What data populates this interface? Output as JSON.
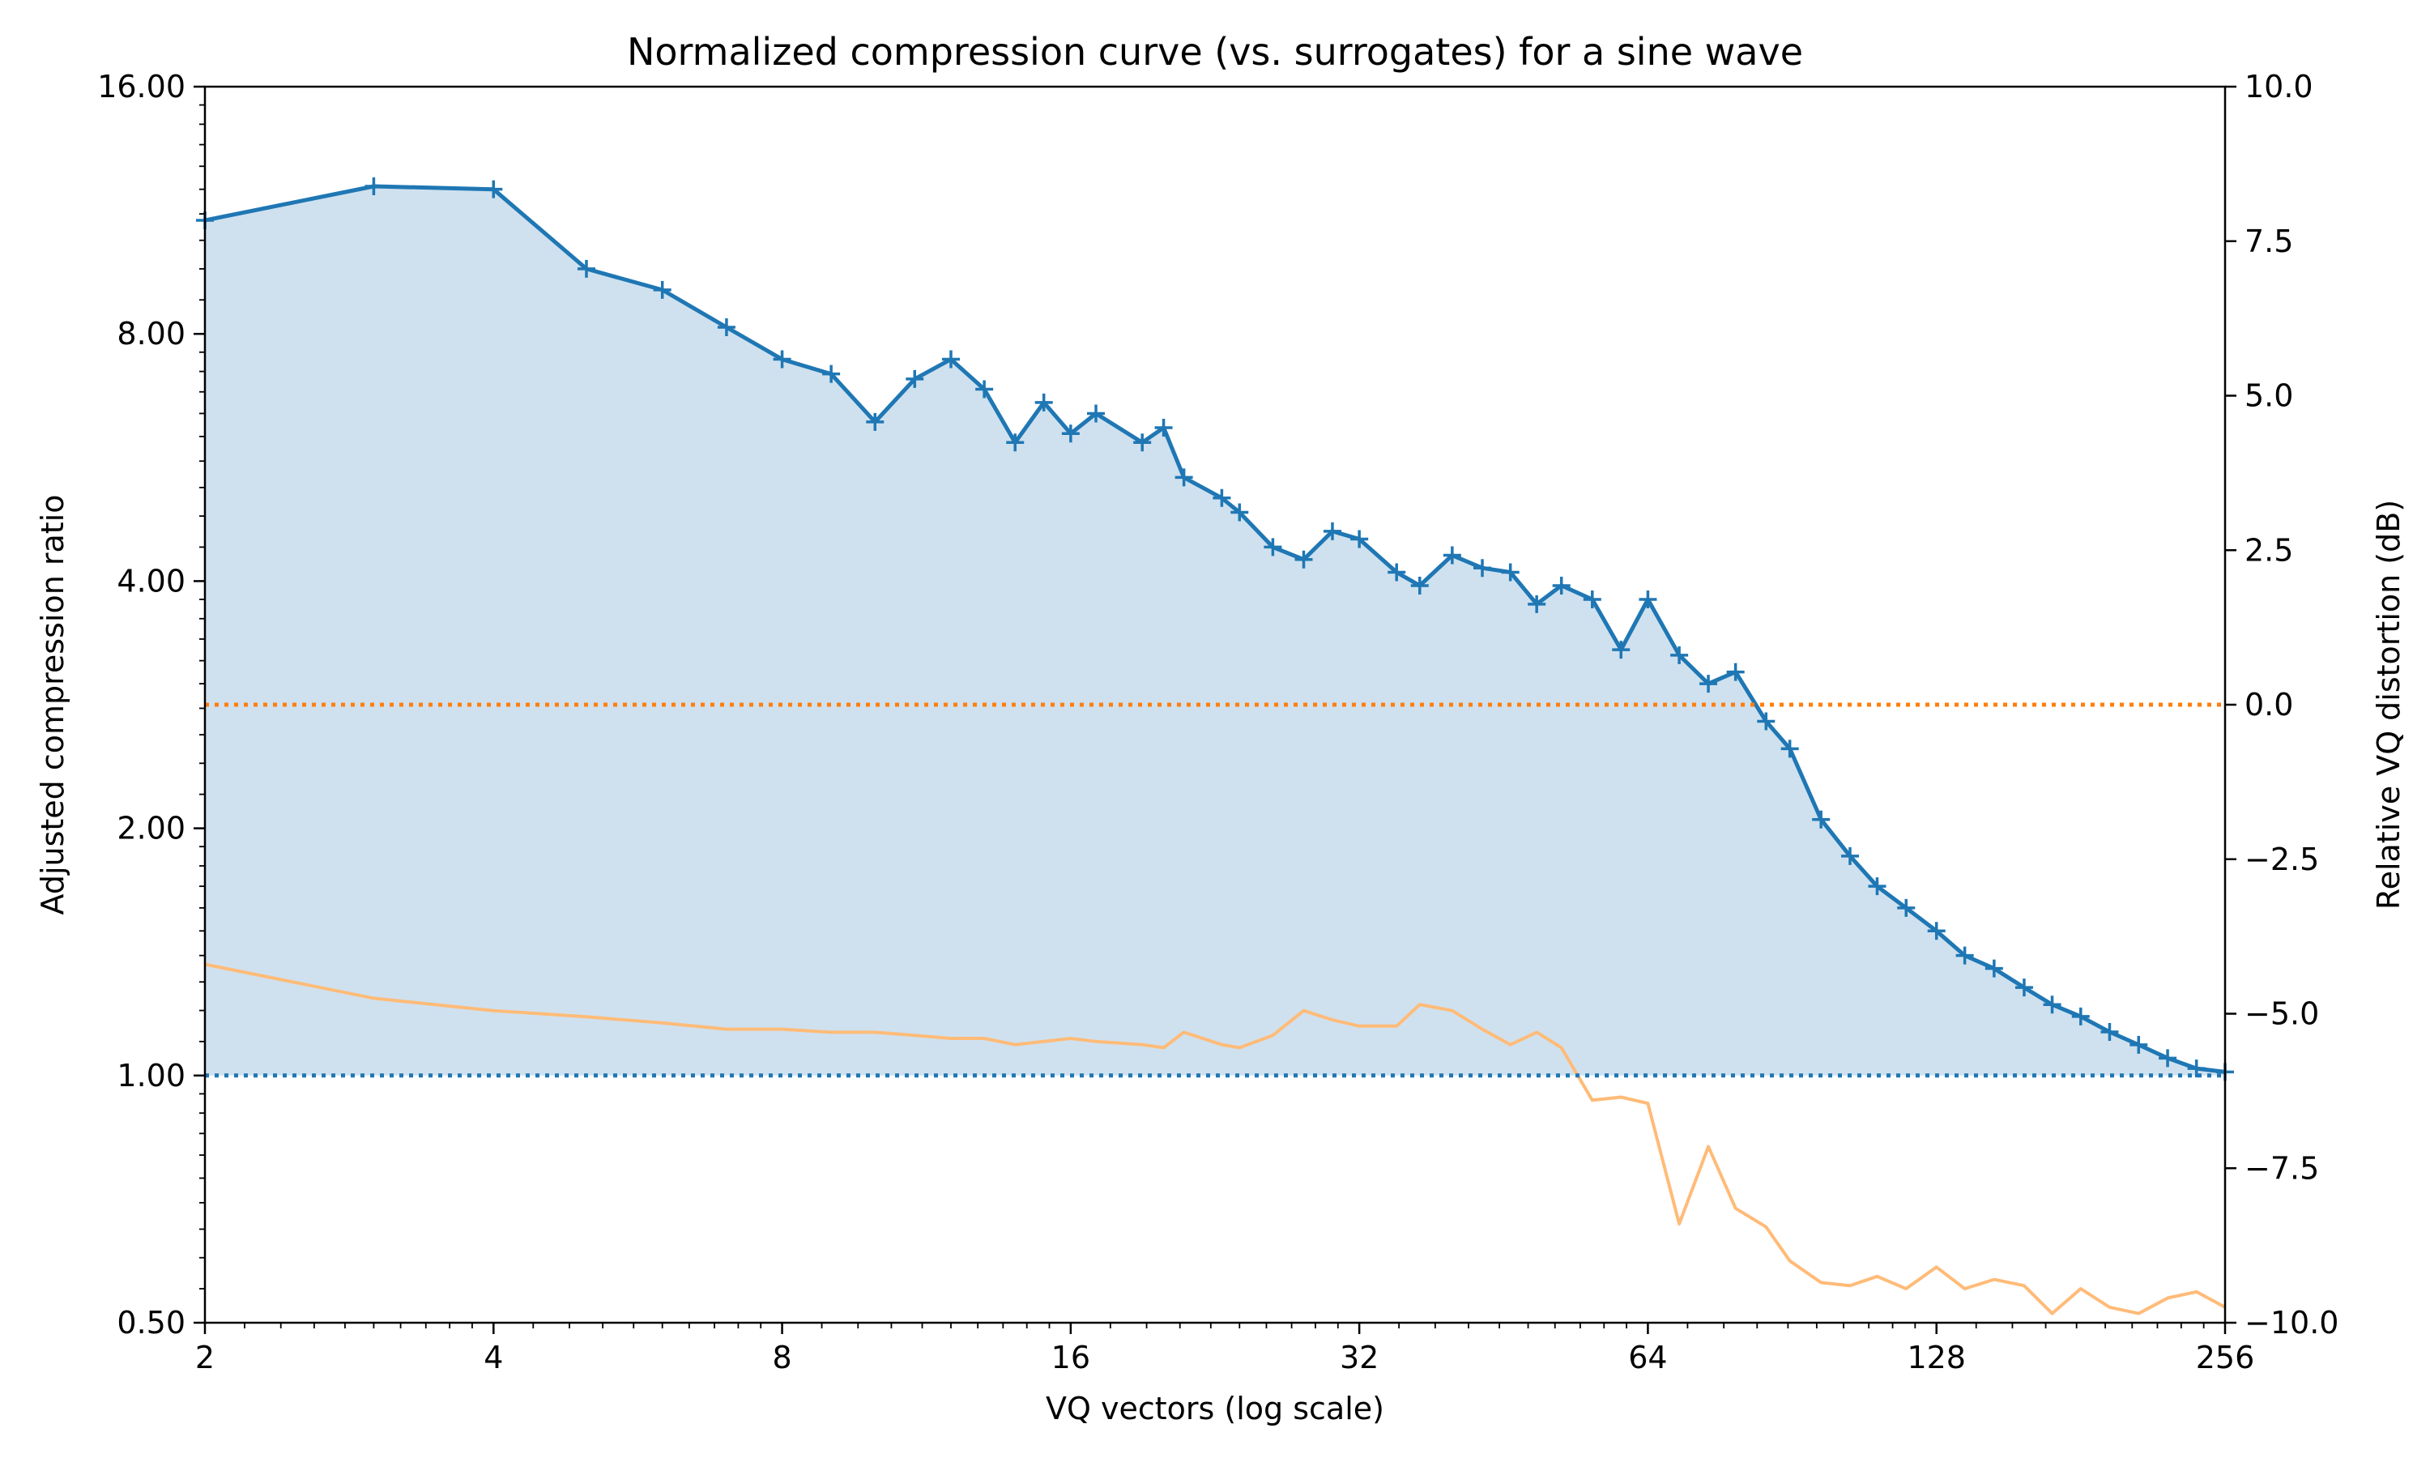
{
  "chart_data": {
    "type": "line",
    "title": "Normalized compression curve (vs. surrogates) for a sine wave",
    "xlabel": "VQ vectors (log scale)",
    "ylabel": "Adjusted compression ratio",
    "y2label": "Relative VQ distortion (dB)",
    "x_scale": "log2",
    "y_scale": "log2",
    "xlim": [
      2,
      256
    ],
    "ylim": [
      0.5,
      16
    ],
    "y2lim": [
      -10,
      10
    ],
    "x_ticks": [
      2,
      4,
      8,
      16,
      32,
      64,
      128,
      256
    ],
    "x_tick_labels": [
      "2",
      "4",
      "8",
      "16",
      "32",
      "64",
      "128",
      "256"
    ],
    "y_ticks": [
      0.5,
      1,
      2,
      4,
      8,
      16
    ],
    "y_tick_labels": [
      "0.50",
      "1.00",
      "2.00",
      "4.00",
      "8.00",
      "16.00"
    ],
    "y2_ticks": [
      -10,
      -7.5,
      -5,
      -2.5,
      0,
      2.5,
      5,
      7.5,
      10
    ],
    "y2_tick_labels": [
      "−10.0",
      "−7.5",
      "−5.0",
      "−2.5",
      "0.0",
      "2.5",
      "5.0",
      "7.5",
      "10.0"
    ],
    "grid": false,
    "reference_lines": [
      {
        "axis": "left",
        "y": 1.0,
        "style": "dotted",
        "color": "#1f77b4"
      },
      {
        "axis": "right",
        "y": 0.0,
        "style": "dotted",
        "color": "#ff7f0e"
      }
    ],
    "series": [
      {
        "axis": "left",
        "color": "#1f77b4",
        "fill_color": "#cfe1ef",
        "marker": "+",
        "fill_to": 1.0,
        "x": [
          2,
          3,
          4,
          5,
          6,
          7,
          8,
          9,
          10,
          11,
          12,
          13,
          14,
          15,
          16,
          17,
          19,
          20,
          21,
          23,
          24,
          26,
          28,
          30,
          32,
          35,
          37,
          40,
          43,
          46,
          49,
          52,
          56,
          60,
          64,
          69,
          74,
          79,
          85,
          90,
          97,
          104,
          111,
          119,
          128,
          137,
          147,
          158,
          169,
          181,
          194,
          208,
          223,
          239,
          256
        ],
        "y": [
          11.0,
          12.1,
          12.0,
          9.6,
          9.05,
          8.15,
          7.45,
          7.15,
          6.25,
          7.05,
          7.45,
          6.85,
          5.9,
          6.6,
          6.05,
          6.4,
          5.9,
          6.15,
          5.35,
          5.05,
          4.85,
          4.4,
          4.25,
          4.6,
          4.5,
          4.1,
          3.95,
          4.3,
          4.15,
          4.1,
          3.75,
          3.95,
          3.8,
          3.3,
          3.8,
          3.25,
          3.0,
          3.1,
          2.7,
          2.5,
          2.05,
          1.85,
          1.7,
          1.6,
          1.5,
          1.4,
          1.35,
          1.28,
          1.22,
          1.18,
          1.13,
          1.09,
          1.05,
          1.02,
          1.01
        ]
      },
      {
        "axis": "right",
        "color": "#ffbb78",
        "x": [
          2,
          3,
          4,
          5,
          6,
          7,
          8,
          9,
          10,
          11,
          12,
          13,
          14,
          15,
          16,
          17,
          19,
          20,
          21,
          23,
          24,
          26,
          28,
          30,
          32,
          35,
          37,
          40,
          43,
          46,
          49,
          52,
          56,
          60,
          64,
          69,
          74,
          79,
          85,
          90,
          97,
          104,
          111,
          119,
          128,
          137,
          147,
          158,
          169,
          181,
          194,
          208,
          223,
          239,
          256
        ],
        "y": [
          -4.2,
          -4.75,
          -4.95,
          -5.05,
          -5.15,
          -5.25,
          -5.25,
          -5.3,
          -5.3,
          -5.35,
          -5.4,
          -5.4,
          -5.5,
          -5.45,
          -5.4,
          -5.45,
          -5.5,
          -5.55,
          -5.3,
          -5.5,
          -5.55,
          -5.35,
          -4.95,
          -5.1,
          -5.2,
          -5.2,
          -4.85,
          -4.95,
          -5.25,
          -5.5,
          -5.3,
          -5.55,
          -6.4,
          -6.35,
          -6.45,
          -8.4,
          -7.15,
          -8.15,
          -8.45,
          -9.0,
          -9.35,
          -9.4,
          -9.25,
          -9.45,
          -9.1,
          -9.45,
          -9.3,
          -9.4,
          -9.85,
          -9.45,
          -9.75,
          -9.85,
          -9.6,
          -9.5,
          -9.75
        ]
      }
    ]
  }
}
